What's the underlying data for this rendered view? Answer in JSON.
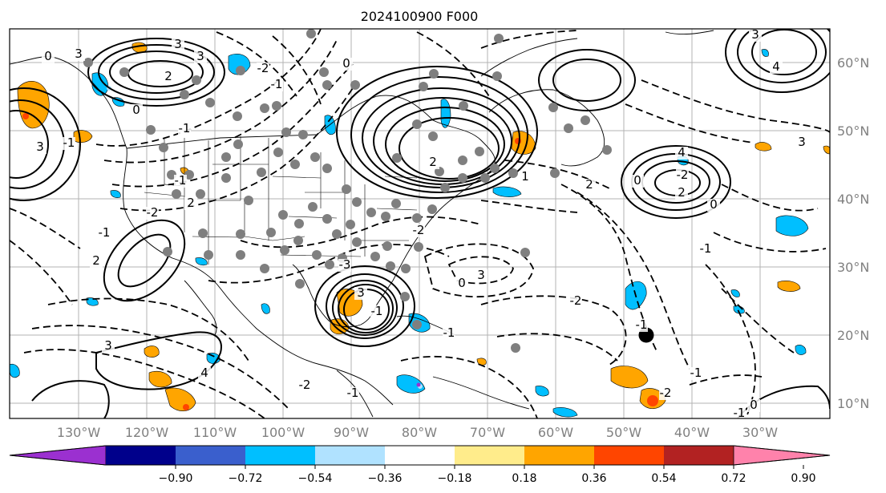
{
  "title": "2024100900 F000",
  "map": {
    "lon_labels": [
      "130°W",
      "120°W",
      "110°W",
      "100°W",
      "90°W",
      "80°W",
      "70°W",
      "60°W",
      "50°W",
      "40°W",
      "30°W"
    ],
    "lat_labels": [
      "60°N",
      "50°N",
      "40°N",
      "30°N",
      "20°N",
      "10°N"
    ],
    "contour_labels": [
      "0",
      "3",
      "3",
      "2",
      "3",
      "-1",
      "0",
      "3",
      "-2",
      "-1",
      "-2",
      "2",
      "-1",
      "2",
      "3",
      "4",
      "3",
      "-1",
      "-2",
      "3",
      "0",
      "-3",
      "-1",
      "-2",
      "-1",
      "-2",
      "2",
      "0",
      "0",
      "-2",
      "-1",
      "-1",
      "0",
      "-1",
      "-2",
      "-1",
      "-1",
      "0",
      "2",
      "1",
      "4",
      "3",
      "4",
      "3",
      "2",
      "-1"
    ],
    "colors": {
      "contour": "#000000",
      "grid": "#b0b0b0",
      "station": "#7f7f7f",
      "marker": "#000000"
    }
  },
  "colorbar": {
    "ticks": [
      "−0.90",
      "−0.72",
      "−0.54",
      "−0.36",
      "−0.18",
      "0.18",
      "0.36",
      "0.54",
      "0.72",
      "0.90"
    ],
    "colors": [
      "#9b30d0",
      "#00008b",
      "#3a5fcd",
      "#00bfff",
      "#b0e2ff",
      "#ffffff",
      "#ffec8b",
      "#ffa500",
      "#ff4500",
      "#b22222",
      "#ff82ab"
    ]
  }
}
